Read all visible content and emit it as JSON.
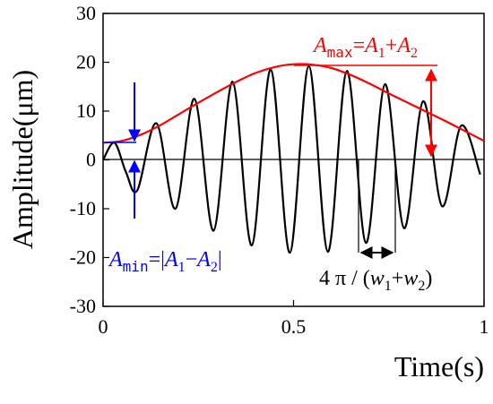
{
  "chart_data": {
    "type": "line",
    "xlabel": "Time(s)",
    "ylabel": "Amplitude(μm)",
    "xlim": [
      0,
      1
    ],
    "ylim": [
      -30,
      30
    ],
    "x_ticks": [
      0,
      0.5,
      1
    ],
    "x_tick_labels": [
      "0",
      "0.5",
      "1"
    ],
    "y_ticks": [
      -30,
      -20,
      -10,
      0,
      10,
      20,
      30
    ],
    "y_tick_labels": [
      "-30",
      "-20",
      "-10",
      "0",
      "10",
      "20",
      "30"
    ],
    "grid": false,
    "series": [
      {
        "color": "#000000",
        "style": "signal",
        "x": [
          0.0,
          0.03,
          0.06,
          0.09,
          0.14,
          0.19,
          0.24,
          0.29,
          0.34,
          0.39,
          0.44,
          0.49,
          0.54,
          0.59,
          0.64,
          0.69,
          0.74,
          0.79,
          0.84,
          0.89,
          0.94,
          0.99
        ],
        "values": [
          0,
          3.5,
          -2.5,
          -6.2,
          7.5,
          -10,
          12.5,
          -14.5,
          16,
          -17.5,
          18.5,
          -19,
          19.2,
          -18.8,
          18.2,
          -17,
          15.5,
          -14,
          12,
          -9.5,
          7,
          -3
        ]
      },
      {
        "color": "#ff0000",
        "style": "envelope",
        "x": [
          0.0,
          0.05,
          0.1,
          0.15,
          0.2,
          0.25,
          0.3,
          0.35,
          0.4,
          0.45,
          0.5,
          0.55,
          0.6,
          0.65,
          0.7,
          0.75,
          0.8,
          0.85,
          0.9,
          0.95,
          1.0
        ],
        "values": [
          3.5,
          3.9,
          5.2,
          7.1,
          9.4,
          11.7,
          13.9,
          16.0,
          17.8,
          19.0,
          19.6,
          19.5,
          18.8,
          17.4,
          15.6,
          13.6,
          11.7,
          9.8,
          7.9,
          5.9,
          3.9
        ]
      }
    ],
    "annotations": {
      "amax": {
        "A": "A",
        "max": "max",
        "eq": "=",
        "A1": "A",
        "s1": "1",
        "plus": "+",
        "A2": "A",
        "s2": "2",
        "color": "#ff0000"
      },
      "amin": {
        "A": "A",
        "min": "min",
        "eq": "=",
        "bar1": "|",
        "A1": "A",
        "s1": "1",
        "minus": "−",
        "A2": "A",
        "s2": "2",
        "bar2": "|",
        "color": "#0000ff"
      },
      "period": {
        "text": "4 π / (",
        "w1": "w",
        "s1": "1",
        "plus": "+",
        "w2": "w",
        "s2": "2",
        "close": ")"
      }
    }
  }
}
